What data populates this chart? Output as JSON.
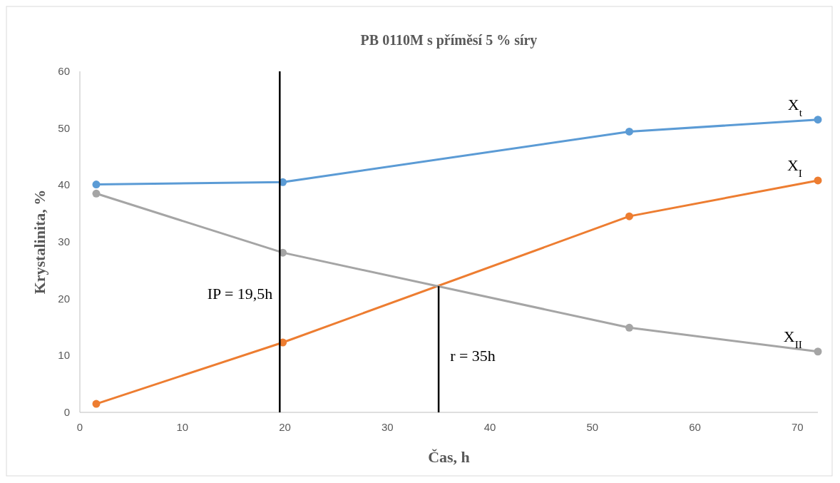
{
  "chart_data": {
    "type": "line",
    "title": "PB 0110M s příměsí 5 % síry",
    "xlabel": "Čas, h",
    "ylabel": "Krystalinita, %",
    "xlim": [
      0,
      72
    ],
    "xticks": [
      0,
      10,
      20,
      30,
      40,
      50,
      60,
      70
    ],
    "ylim": [
      0,
      60
    ],
    "yticks": [
      0,
      10,
      20,
      30,
      40,
      50,
      60
    ],
    "grid": false,
    "marker": "circle",
    "line_style": "solid",
    "series": [
      {
        "name": "X$_{t}$",
        "color": "#5b9bd5",
        "x": [
          1.6,
          19.8,
          53.6,
          72
        ],
        "values": [
          40.1,
          40.5,
          49.4,
          51.5
        ]
      },
      {
        "name": "X$_{I}$",
        "color": "#ed7d31",
        "x": [
          1.6,
          19.8,
          53.6,
          72
        ],
        "values": [
          1.5,
          12.3,
          34.5,
          40.8
        ]
      },
      {
        "name": "X$_{II}$",
        "color": "#a5a5a5",
        "x": [
          1.6,
          19.8,
          53.6,
          72
        ],
        "values": [
          38.5,
          28.1,
          14.9,
          10.7
        ]
      },
      {
        "type": "line",
        "color": "#000000",
        "marker": "none",
        "x": [
          35,
          35
        ],
        "values": [
          0,
          22.2
        ]
      }
    ],
    "ref_lines": [
      {
        "axis": "x",
        "value": 19.5,
        "label": "IP = 19,5h",
        "color": "#000000"
      }
    ],
    "annotations": [
      {
        "text": "r = 35h",
        "x": 35,
        "y": 10
      }
    ]
  }
}
